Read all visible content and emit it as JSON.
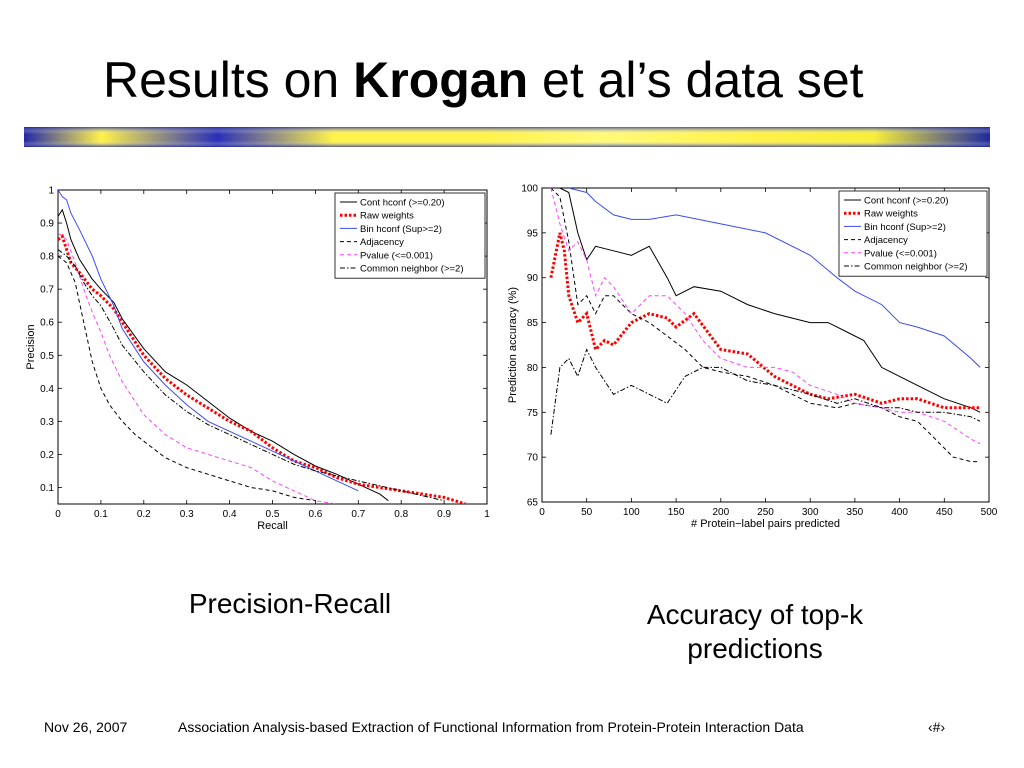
{
  "slide": {
    "title_pre": "Results on ",
    "title_bold": "Krogan",
    "title_post": " et al’s data set",
    "caption_left": "Precision-Recall",
    "caption_right_line1": "Accuracy of top-k",
    "caption_right_line2": "predictions",
    "footer_date": "Nov 26, 2007",
    "footer_title": "Association Analysis-based Extraction of Functional Information from Protein-Protein Interaction Data",
    "footer_page": "‹#›"
  },
  "chart_data": [
    {
      "type": "line",
      "xlabel": "Recall",
      "ylabel": "Precision",
      "xlim": [
        0,
        1
      ],
      "ylim": [
        0.05,
        1
      ],
      "xticks": [
        "0",
        "0.1",
        "0.2",
        "0.3",
        "0.4",
        "0.5",
        "0.6",
        "0.7",
        "0.8",
        "0.9",
        "1"
      ],
      "yticks": [
        "0.1",
        "0.2",
        "0.3",
        "0.4",
        "0.5",
        "0.6",
        "0.7",
        "0.8",
        "0.9",
        "1"
      ],
      "legend_position": "top-right",
      "series": [
        {
          "name": "Cont hconf (>=0.20)",
          "color": "#000000",
          "style": "solid",
          "x": [
            0,
            0.01,
            0.02,
            0.03,
            0.05,
            0.08,
            0.1,
            0.13,
            0.15,
            0.2,
            0.25,
            0.3,
            0.35,
            0.4,
            0.45,
            0.5,
            0.55,
            0.6,
            0.65,
            0.7,
            0.75,
            0.77
          ],
          "y": [
            0.92,
            0.94,
            0.9,
            0.85,
            0.79,
            0.73,
            0.7,
            0.66,
            0.61,
            0.52,
            0.45,
            0.41,
            0.36,
            0.31,
            0.27,
            0.24,
            0.2,
            0.165,
            0.14,
            0.11,
            0.08,
            0.06
          ]
        },
        {
          "name": "Raw weights",
          "color": "#ff0000",
          "style": "dotted",
          "x": [
            0,
            0.01,
            0.02,
            0.03,
            0.05,
            0.08,
            0.1,
            0.13,
            0.15,
            0.2,
            0.25,
            0.3,
            0.35,
            0.4,
            0.45,
            0.5,
            0.55,
            0.6,
            0.65,
            0.7,
            0.8,
            0.9,
            0.95
          ],
          "y": [
            0.85,
            0.86,
            0.82,
            0.78,
            0.75,
            0.7,
            0.68,
            0.64,
            0.6,
            0.5,
            0.43,
            0.38,
            0.34,
            0.3,
            0.27,
            0.22,
            0.18,
            0.16,
            0.13,
            0.11,
            0.09,
            0.07,
            0.05
          ]
        },
        {
          "name": "Bin hconf (Sup>=2)",
          "color": "#3b4cf0",
          "style": "solid",
          "x": [
            0,
            0.01,
            0.02,
            0.03,
            0.05,
            0.08,
            0.1,
            0.13,
            0.15,
            0.2,
            0.25,
            0.3,
            0.35,
            0.4,
            0.45,
            0.5,
            0.55,
            0.6,
            0.65,
            0.7
          ],
          "y": [
            1,
            0.98,
            0.97,
            0.93,
            0.88,
            0.8,
            0.73,
            0.65,
            0.58,
            0.48,
            0.41,
            0.35,
            0.3,
            0.27,
            0.24,
            0.21,
            0.18,
            0.15,
            0.12,
            0.09
          ]
        },
        {
          "name": "Adjacency",
          "color": "#000000",
          "style": "dashed",
          "x": [
            0,
            0.02,
            0.04,
            0.06,
            0.08,
            0.1,
            0.12,
            0.15,
            0.18,
            0.2,
            0.25,
            0.3,
            0.35,
            0.4,
            0.45,
            0.5,
            0.55,
            0.6
          ],
          "y": [
            0.8,
            0.78,
            0.72,
            0.6,
            0.48,
            0.4,
            0.35,
            0.3,
            0.26,
            0.24,
            0.19,
            0.16,
            0.14,
            0.12,
            0.1,
            0.09,
            0.07,
            0.06
          ]
        },
        {
          "name": "Pvalue (<=0.001)",
          "color": "#ff44ff",
          "style": "dashed",
          "x": [
            0,
            0.02,
            0.04,
            0.06,
            0.08,
            0.1,
            0.12,
            0.15,
            0.18,
            0.2,
            0.25,
            0.3,
            0.35,
            0.4,
            0.45,
            0.5,
            0.55,
            0.6,
            0.65
          ],
          "y": [
            0.87,
            0.85,
            0.78,
            0.7,
            0.63,
            0.57,
            0.5,
            0.42,
            0.36,
            0.32,
            0.26,
            0.22,
            0.2,
            0.18,
            0.16,
            0.12,
            0.09,
            0.06,
            0.05
          ]
        },
        {
          "name": "Common neighbor (>=2)",
          "color": "#000000",
          "style": "dashdot",
          "x": [
            0,
            0.02,
            0.04,
            0.06,
            0.08,
            0.1,
            0.13,
            0.15,
            0.2,
            0.25,
            0.3,
            0.35,
            0.4,
            0.45,
            0.5,
            0.55,
            0.6,
            0.7,
            0.8,
            0.9
          ],
          "y": [
            0.82,
            0.8,
            0.77,
            0.72,
            0.68,
            0.65,
            0.58,
            0.53,
            0.45,
            0.38,
            0.33,
            0.29,
            0.26,
            0.23,
            0.2,
            0.17,
            0.15,
            0.12,
            0.09,
            0.06
          ]
        }
      ]
    },
    {
      "type": "line",
      "xlabel": "# Protein−label pairs predicted",
      "ylabel": "Prediction accuracy (%)",
      "xlim": [
        0,
        500
      ],
      "ylim": [
        65,
        100
      ],
      "xticks": [
        "0",
        "50",
        "100",
        "150",
        "200",
        "250",
        "300",
        "350",
        "400",
        "450",
        "500"
      ],
      "yticks": [
        "65",
        "70",
        "75",
        "80",
        "85",
        "90",
        "95",
        "100"
      ],
      "legend_position": "top-right",
      "series": [
        {
          "name": "Cont hconf (>=0.20)",
          "color": "#000000",
          "style": "solid",
          "x": [
            20,
            30,
            40,
            50,
            60,
            80,
            100,
            120,
            140,
            150,
            170,
            200,
            230,
            260,
            280,
            300,
            320,
            340,
            360,
            380,
            400,
            420,
            450,
            480,
            490
          ],
          "y": [
            100,
            99.5,
            95,
            92,
            93.5,
            93,
            92.5,
            93.5,
            90,
            88,
            89,
            88.5,
            87,
            86,
            85.5,
            85,
            85,
            84,
            83,
            80,
            79,
            78,
            76.5,
            75.5,
            75
          ]
        },
        {
          "name": "Raw weights",
          "color": "#ff0000",
          "style": "dotted",
          "x": [
            10,
            20,
            25,
            30,
            40,
            50,
            60,
            70,
            80,
            100,
            120,
            140,
            150,
            170,
            200,
            230,
            260,
            280,
            300,
            320,
            350,
            380,
            400,
            420,
            450,
            480,
            490
          ],
          "y": [
            90,
            95,
            93,
            88,
            85,
            86,
            82,
            83,
            82.5,
            85,
            86,
            85.5,
            84.5,
            86,
            82,
            81.5,
            79,
            78,
            77,
            76.5,
            77,
            76,
            76.5,
            76.5,
            75.5,
            75.5,
            75.5
          ]
        },
        {
          "name": "Bin hconf (Sup>=2)",
          "color": "#3b4cf0",
          "style": "solid",
          "x": [
            30,
            50,
            60,
            80,
            100,
            120,
            150,
            200,
            250,
            300,
            330,
            350,
            380,
            400,
            420,
            450,
            480,
            490
          ],
          "y": [
            100,
            99.5,
            98.5,
            97,
            96.5,
            96.5,
            97,
            96,
            95,
            92.5,
            90,
            88.5,
            87,
            85,
            84.5,
            83.5,
            81,
            80
          ]
        },
        {
          "name": "Adjacency",
          "color": "#000000",
          "style": "dashed",
          "x": [
            10,
            20,
            30,
            40,
            50,
            60,
            70,
            80,
            100,
            120,
            140,
            160,
            180,
            200,
            230,
            260,
            300,
            330,
            350,
            380,
            400,
            420,
            440,
            460,
            480,
            490
          ],
          "y": [
            100,
            99,
            94,
            87,
            88,
            86,
            88,
            88,
            86,
            85,
            83.5,
            82,
            80,
            79.5,
            79,
            78,
            76,
            75.5,
            76,
            75.5,
            74.5,
            74,
            72,
            70,
            69.5,
            69.5
          ]
        },
        {
          "name": "Pvalue (<=0.001)",
          "color": "#ff44ff",
          "style": "dashed",
          "x": [
            10,
            20,
            30,
            40,
            50,
            60,
            70,
            80,
            100,
            120,
            140,
            160,
            180,
            200,
            230,
            260,
            280,
            300,
            330,
            350,
            380,
            400,
            420,
            450,
            480,
            490
          ],
          "y": [
            100,
            96,
            93,
            94,
            92,
            88,
            90,
            89,
            86,
            88,
            88,
            86,
            83,
            81,
            80,
            80,
            79.5,
            78,
            77,
            76,
            75.5,
            75,
            75,
            74,
            72,
            71.5
          ]
        },
        {
          "name": "Common neighbor (>=2)",
          "color": "#000000",
          "style": "dashdot",
          "x": [
            10,
            20,
            30,
            40,
            50,
            60,
            80,
            100,
            120,
            140,
            160,
            180,
            200,
            230,
            260,
            300,
            330,
            350,
            380,
            400,
            420,
            450,
            480,
            490
          ],
          "y": [
            72.5,
            80,
            81,
            79,
            82,
            80,
            77,
            78,
            77,
            76,
            79,
            80,
            80,
            78.5,
            78,
            77,
            76,
            76.5,
            75.5,
            75.5,
            75,
            75,
            74.5,
            74
          ]
        }
      ]
    }
  ]
}
